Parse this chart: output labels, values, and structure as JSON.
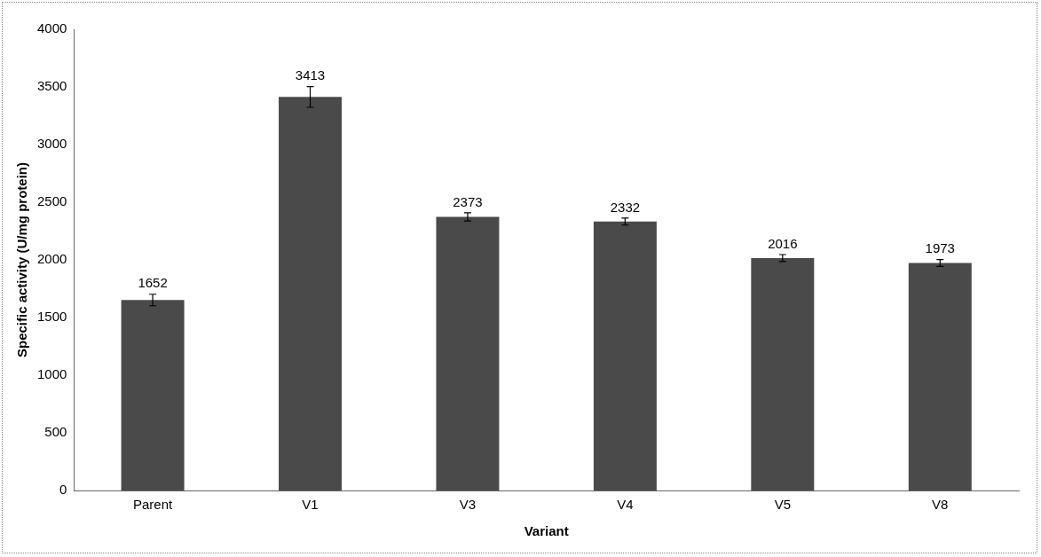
{
  "chart_data": {
    "type": "bar",
    "xlabel": "Variant",
    "ylabel": "Specific activity (U/mg protein)",
    "categories": [
      "Parent",
      "V1",
      "V3",
      "V4",
      "V5",
      "V8"
    ],
    "values": [
      1652,
      3413,
      2373,
      2332,
      2016,
      1973
    ],
    "errors": [
      50,
      90,
      35,
      30,
      30,
      30
    ],
    "color": "#4a4a4a",
    "data_labels": true,
    "grid": false,
    "legend": false,
    "ylim": [
      0,
      4000
    ],
    "yticks": [
      0,
      500,
      1000,
      1500,
      2000,
      2500,
      3000,
      3500,
      4000
    ]
  }
}
